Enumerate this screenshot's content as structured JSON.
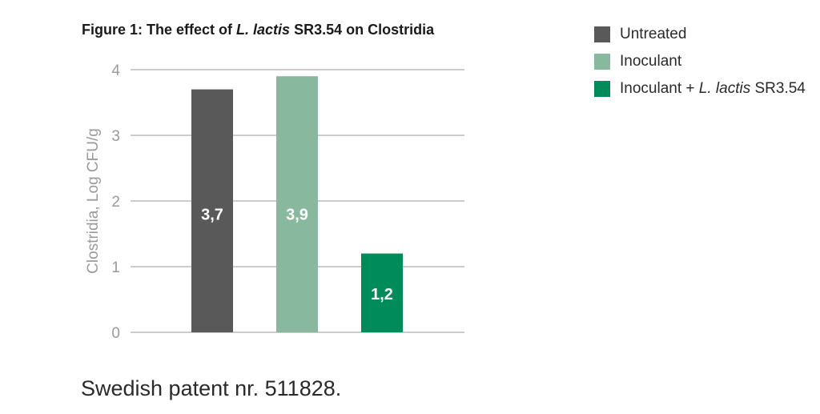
{
  "title": {
    "prefix": "Figure 1: The effect of ",
    "italic": "L. lactis",
    "suffix": " SR3.54 on Clostridia"
  },
  "footnote": "Swedish patent nr. 511828.",
  "legend": [
    {
      "prefix": "Untreated",
      "italic": "",
      "suffix": "",
      "color": "#595959"
    },
    {
      "prefix": "Inoculant",
      "italic": "",
      "suffix": "",
      "color": "#88b89d"
    },
    {
      "prefix": "Inoculant + ",
      "italic": "L. lactis",
      "suffix": " SR3.54",
      "color": "#008c5a"
    }
  ],
  "chart_data": {
    "type": "bar",
    "title": "Figure 1: The effect of L. lactis SR3.54 on Clostridia",
    "xlabel": "",
    "ylabel": "Clostridia, Log CFU/g",
    "ylim": [
      0,
      4
    ],
    "yticks": [
      "0",
      "1",
      "2",
      "3",
      "4"
    ],
    "grid": true,
    "legend_position": "top-right",
    "categories": [
      "Untreated",
      "Inoculant",
      "Inoculant + L. lactis SR3.54"
    ],
    "values": [
      3.7,
      3.9,
      1.2
    ],
    "data_labels": [
      "3,7",
      "3,9",
      "1,2"
    ],
    "colors": [
      "#595959",
      "#88b89d",
      "#008c5a"
    ]
  }
}
